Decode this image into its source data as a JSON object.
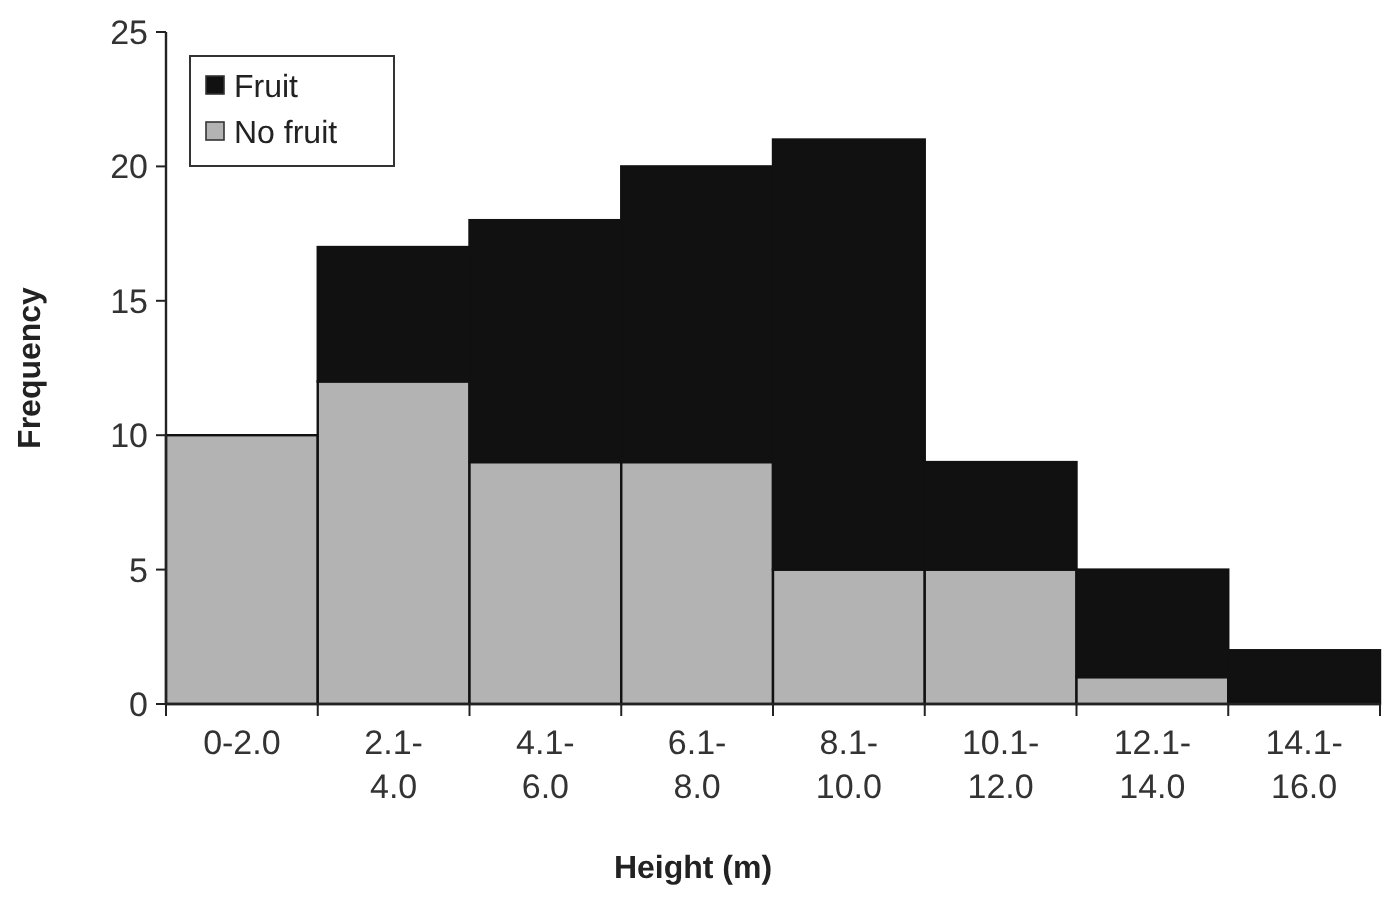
{
  "chart_data": {
    "type": "bar",
    "stacked": true,
    "xlabel": "Height (m)",
    "ylabel": "Frequency",
    "categories": [
      "0-2.0",
      "2.1-\n4.0",
      "4.1-\n6.0",
      "6.1-\n8.0",
      "8.1-\n10.0",
      "10.1-\n12.0",
      "12.1-\n14.0",
      "14.1-\n16.0"
    ],
    "series": [
      {
        "name": "No fruit",
        "color": "#b3b3b3",
        "values": [
          10,
          12,
          9,
          9,
          5,
          5,
          1,
          0
        ]
      },
      {
        "name": "Fruit",
        "color": "#111111",
        "values": [
          0,
          5,
          9,
          11,
          16,
          4,
          4,
          2
        ]
      }
    ],
    "ylim": [
      0,
      25
    ],
    "yticks": [
      0,
      5,
      10,
      15,
      20,
      25
    ],
    "legend": "top left",
    "grid": false
  }
}
